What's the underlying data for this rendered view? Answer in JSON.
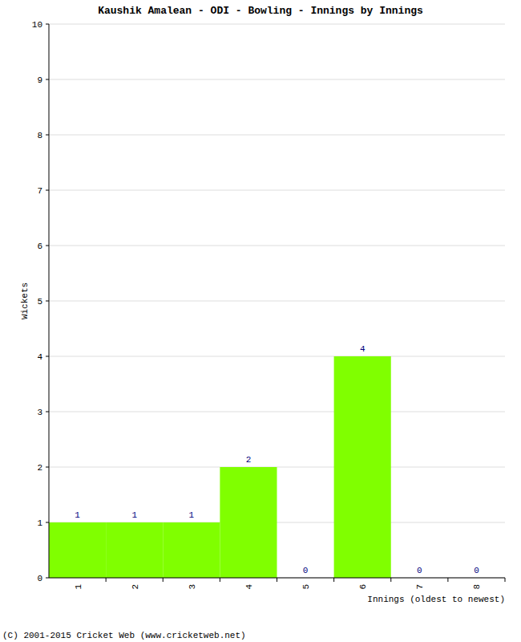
{
  "chart_data": {
    "type": "bar",
    "title": "Kaushik Amalean - ODI - Bowling - Innings by Innings",
    "x_label": "Innings (oldest to newest)",
    "y_label": "Wickets",
    "annotations": [
      "(C) 2001-2015 Cricket Web (www.cricketweb.net)"
    ],
    "categories": [
      "1",
      "2",
      "3",
      "4",
      "5",
      "6",
      "7",
      "8"
    ],
    "values": [
      1,
      1,
      1,
      2,
      0,
      4,
      0,
      0
    ],
    "color": "#80ff00",
    "ylim": [
      0,
      10
    ],
    "yticks": [
      0,
      1,
      2,
      3,
      4,
      5,
      6,
      7,
      8,
      9,
      10
    ],
    "grid": true,
    "data_labels": true
  }
}
